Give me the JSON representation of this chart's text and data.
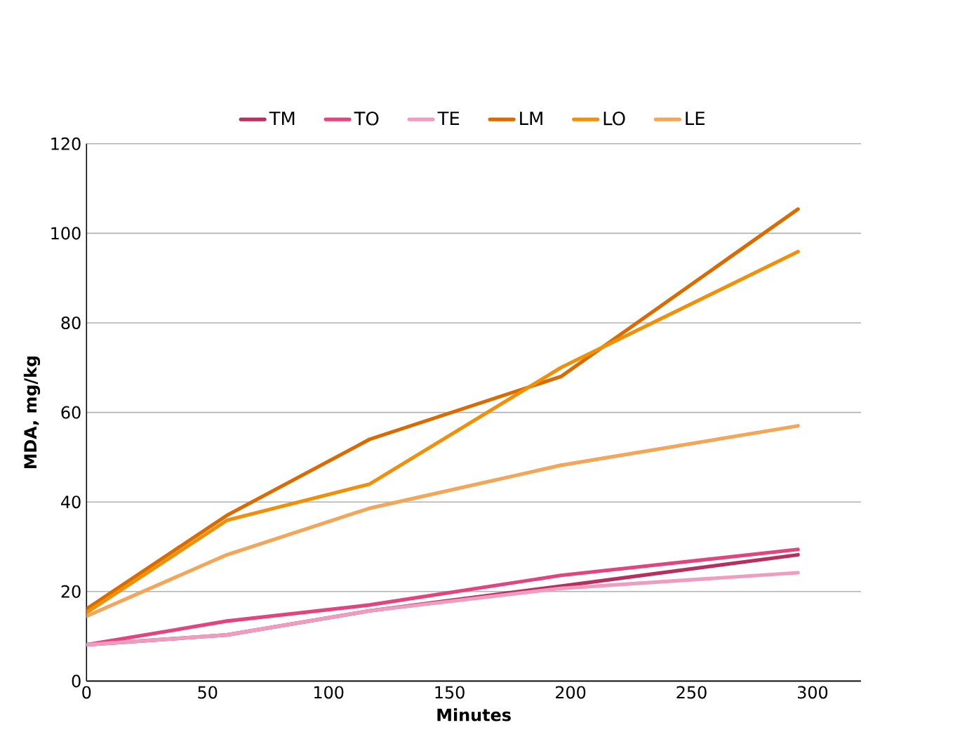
{
  "chart_data": {
    "type": "line",
    "xlabel": "Minutes",
    "ylabel": "MDA, mg/kg",
    "x": [
      0,
      58,
      117,
      196,
      294
    ],
    "series": [
      {
        "name": "TM",
        "color": "#b5305f",
        "values": [
          8.1,
          10.3,
          15.7,
          21.2,
          28.2
        ]
      },
      {
        "name": "TO",
        "color": "#e0457f",
        "values": [
          8.1,
          13.4,
          17.0,
          23.6,
          29.4
        ]
      },
      {
        "name": "TE",
        "color": "#ee9cc0",
        "values": [
          8.1,
          10.3,
          15.7,
          20.7,
          24.2
        ]
      },
      {
        "name": "LM",
        "color": "#d96b00",
        "values": [
          16.1,
          37.0,
          54.0,
          68.0,
          105.4
        ]
      },
      {
        "name": "LO",
        "color": "#f0900a",
        "values": [
          15.3,
          35.9,
          44.0,
          70.0,
          95.9
        ]
      },
      {
        "name": "LE",
        "color": "#f2a65a",
        "values": [
          14.5,
          28.2,
          38.6,
          48.2,
          57.0
        ]
      }
    ],
    "xlim": [
      0,
      320
    ],
    "ylim": [
      0,
      120
    ],
    "xticks": [
      0,
      50,
      100,
      150,
      200,
      250,
      300
    ],
    "yticks": [
      0,
      20,
      40,
      60,
      80,
      100,
      120
    ],
    "grid": "y",
    "legend": "top",
    "marker": "none",
    "line_style": "solid"
  }
}
